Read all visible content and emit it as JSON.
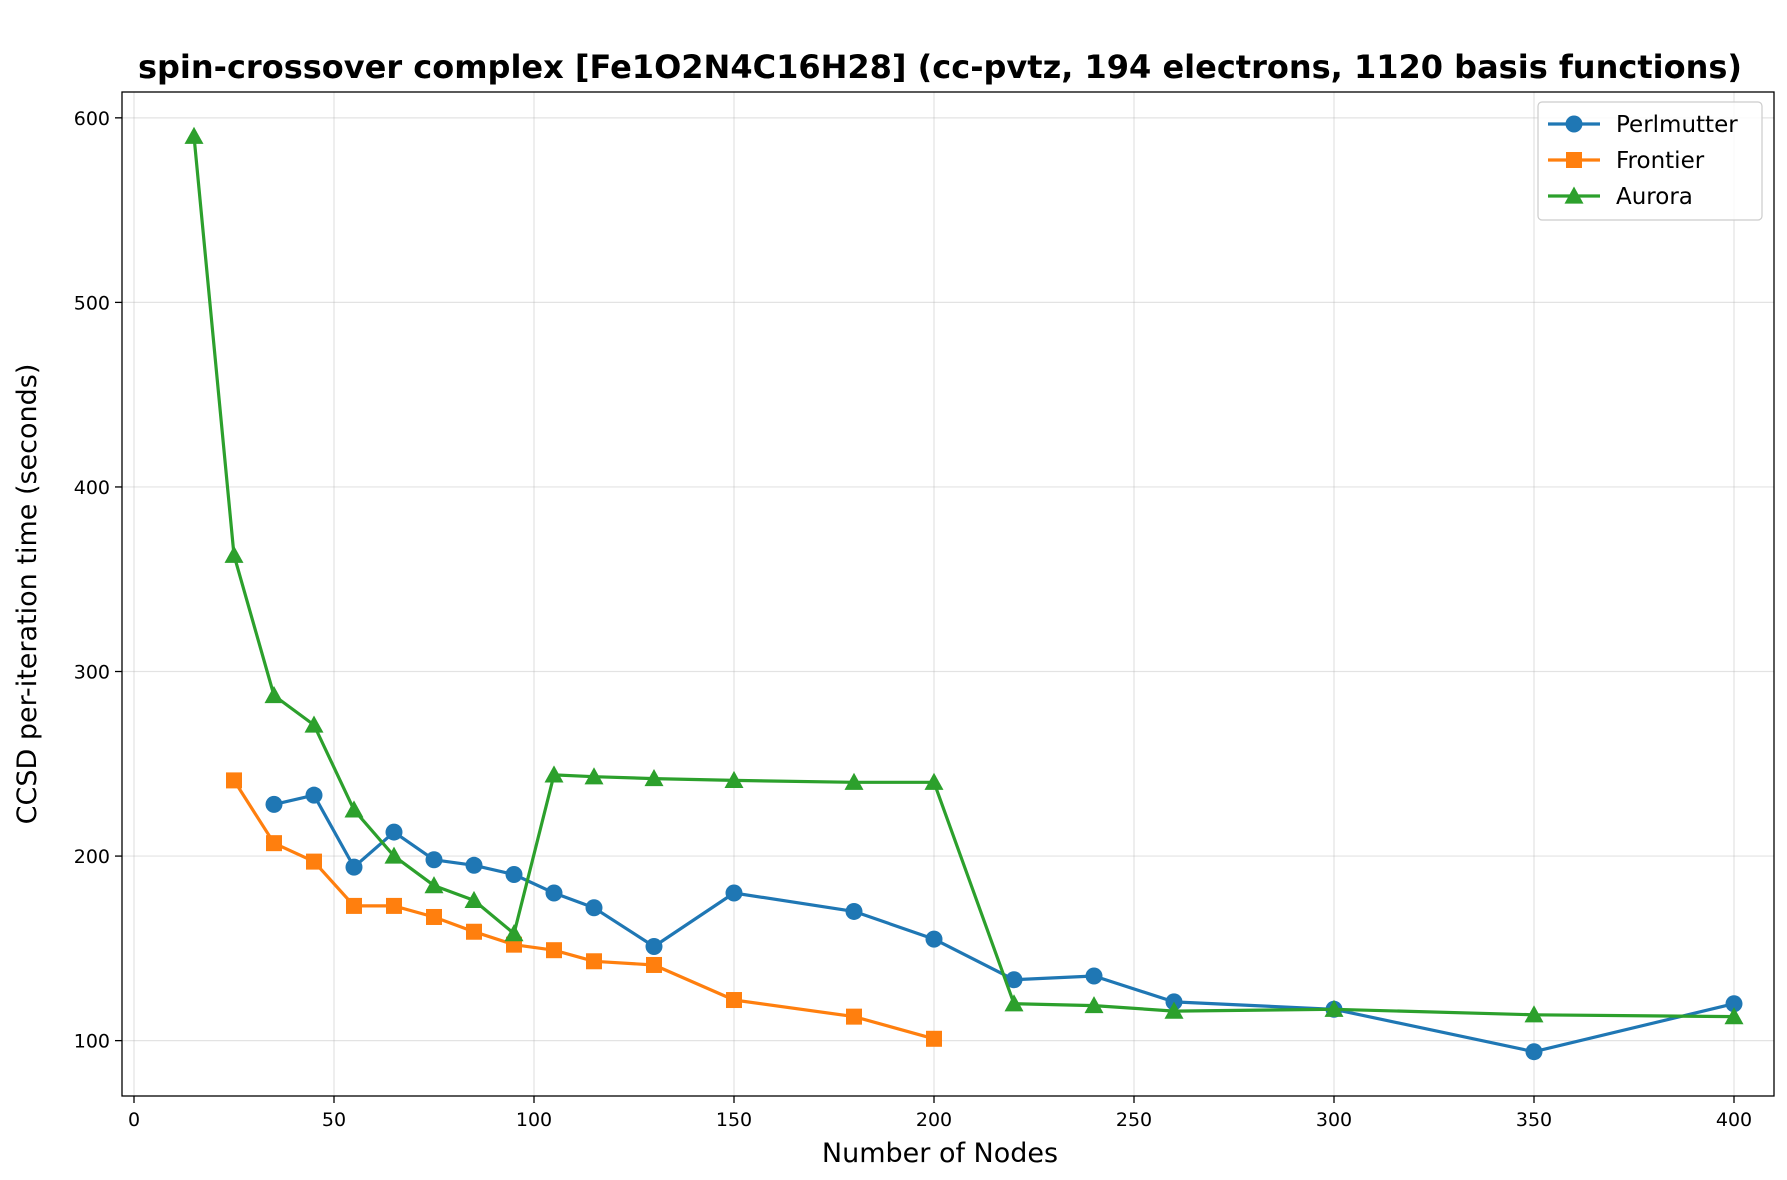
{
  "chart_data": {
    "type": "line",
    "title": "spin-crossover complex [Fe1O2N4C16H28] (cc-pvtz, 194 electrons, 1120 basis functions)",
    "xlabel": "Number of Nodes",
    "ylabel": "CCSD per-iteration time (seconds)",
    "xlim": [
      -3,
      410
    ],
    "ylim": [
      70,
      614
    ],
    "xticks": [
      0,
      50,
      100,
      150,
      200,
      250,
      300,
      350,
      400
    ],
    "yticks": [
      100,
      200,
      300,
      400,
      500,
      600
    ],
    "xtick_labels": [
      "0",
      "50",
      "100",
      "150",
      "200",
      "250",
      "300",
      "350",
      "400"
    ],
    "ytick_labels": [
      "100",
      "200",
      "300",
      "400",
      "500",
      "600"
    ],
    "grid": true,
    "legend_position": "top-right",
    "series": [
      {
        "name": "Perlmutter",
        "color": "#1f77b4",
        "marker": "circle",
        "x": [
          35,
          45,
          55,
          65,
          75,
          85,
          95,
          105,
          115,
          130,
          150,
          180,
          200,
          220,
          240,
          260,
          300,
          350,
          400
        ],
        "y": [
          228,
          233,
          194,
          213,
          198,
          195,
          190,
          180,
          172,
          151,
          180,
          170,
          155,
          133,
          135,
          121,
          117,
          94,
          120
        ]
      },
      {
        "name": "Frontier",
        "color": "#ff7f0e",
        "marker": "square",
        "x": [
          25,
          35,
          45,
          55,
          65,
          75,
          85,
          95,
          105,
          115,
          130,
          150,
          180,
          200
        ],
        "y": [
          241,
          207,
          197,
          173,
          173,
          167,
          159,
          152,
          149,
          143,
          141,
          122,
          113,
          101
        ]
      },
      {
        "name": "Aurora",
        "color": "#2ca02c",
        "marker": "triangle",
        "x": [
          15,
          25,
          35,
          45,
          55,
          65,
          75,
          85,
          95,
          105,
          115,
          130,
          150,
          180,
          200,
          220,
          240,
          260,
          300,
          350,
          400
        ],
        "y": [
          590,
          363,
          287,
          271,
          225,
          200,
          184,
          176,
          158,
          244,
          243,
          242,
          241,
          240,
          240,
          120,
          119,
          116,
          117,
          114,
          113
        ]
      }
    ]
  }
}
